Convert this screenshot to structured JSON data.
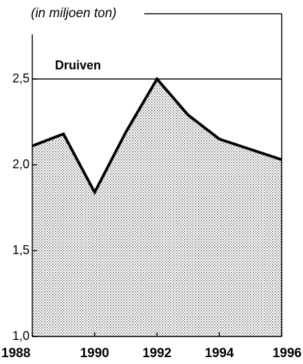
{
  "chart_data": {
    "type": "area",
    "unit_label": "(in miljoen ton)",
    "title": "Druiven",
    "x": [
      1988,
      1989,
      1990,
      1991,
      1992,
      1993,
      1994,
      1995,
      1996
    ],
    "series": [
      {
        "color": "#000000",
        "values": [
          2.11,
          2.18,
          1.84,
          2.19,
          2.5,
          2.29,
          2.15,
          2.09,
          2.03
        ]
      }
    ],
    "xlim": [
      1988,
      1996
    ],
    "xticks": [
      1988,
      1990,
      1992,
      1994,
      1996
    ],
    "ylim": [
      1,
      2.88
    ],
    "yticks": [
      {
        "value": 1,
        "label": "1,0"
      },
      {
        "value": 1.5,
        "label": "1,5"
      },
      {
        "value": 2,
        "label": "2,0"
      },
      {
        "value": 2.5,
        "label": "2,5"
      }
    ],
    "hline": 2.5
  }
}
